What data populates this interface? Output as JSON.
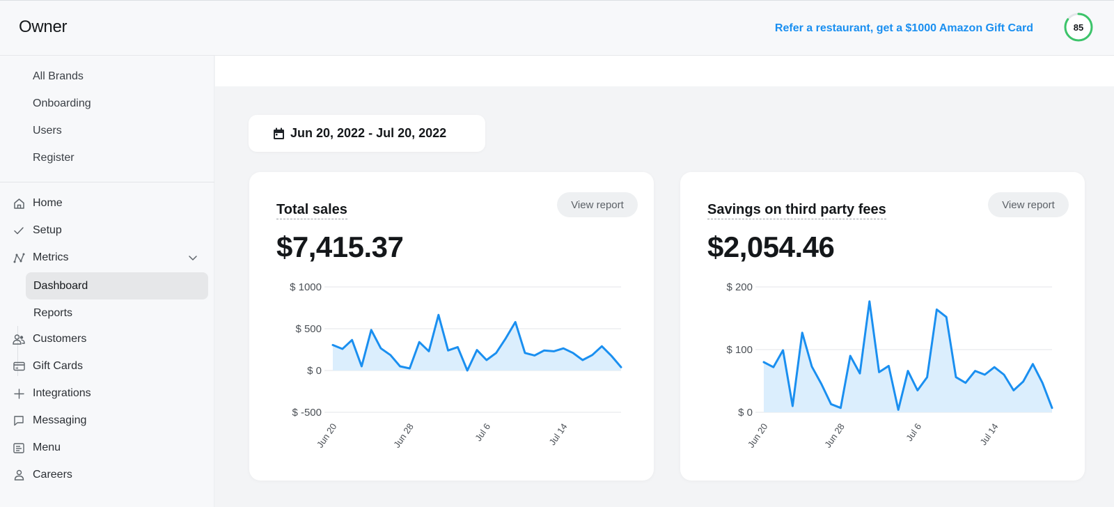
{
  "header": {
    "brand": "Owner",
    "referral": "Refer a restaurant, get a $1000 Amazon Gift Card",
    "score": "85",
    "score_fraction": 0.85,
    "score_color": "#3cc46a"
  },
  "sidebar": {
    "sub_items": [
      {
        "label": "All Brands"
      },
      {
        "label": "Onboarding"
      },
      {
        "label": "Users"
      },
      {
        "label": "Register"
      }
    ],
    "nav": [
      {
        "label": "Home",
        "icon": "home-icon"
      },
      {
        "label": "Setup",
        "icon": "check-icon"
      },
      {
        "label": "Metrics",
        "icon": "metrics-icon"
      },
      {
        "label": "Customers",
        "icon": "customers-icon"
      },
      {
        "label": "Gift Cards",
        "icon": "credit-card-icon"
      },
      {
        "label": "Integrations",
        "icon": "plus-icon"
      },
      {
        "label": "Messaging",
        "icon": "message-icon"
      },
      {
        "label": "Menu",
        "icon": "menu-icon"
      },
      {
        "label": "Careers",
        "icon": "person-icon"
      }
    ],
    "metrics_children": [
      {
        "label": "Dashboard",
        "active": true
      },
      {
        "label": "Reports",
        "active": false
      }
    ]
  },
  "date_range": "Jun 20, 2022 - Jul 20, 2022",
  "cards": [
    {
      "title": "Total sales",
      "value": "$7,415.37",
      "button": "View report"
    },
    {
      "title": "Savings on third party fees",
      "value": "$2,054.46",
      "button": "View report"
    }
  ],
  "chart_data": [
    {
      "type": "area",
      "title": "Total sales",
      "color": "#1a8ff0",
      "fill": "#dbeefd",
      "x": [
        "Jun 20",
        "Jun 21",
        "Jun 22",
        "Jun 23",
        "Jun 24",
        "Jun 25",
        "Jun 26",
        "Jun 27",
        "Jun 28",
        "Jun 29",
        "Jun 30",
        "Jul 1",
        "Jul 2",
        "Jul 3",
        "Jul 4",
        "Jul 5",
        "Jul 6",
        "Jul 7",
        "Jul 8",
        "Jul 9",
        "Jul 10",
        "Jul 11",
        "Jul 12",
        "Jul 13",
        "Jul 14",
        "Jul 15",
        "Jul 16",
        "Jul 17",
        "Jul 18",
        "Jul 19",
        "Jul 20"
      ],
      "values": [
        305,
        258,
        365,
        50,
        485,
        265,
        185,
        50,
        25,
        340,
        230,
        665,
        240,
        280,
        0,
        245,
        125,
        210,
        385,
        580,
        210,
        180,
        240,
        230,
        265,
        210,
        125,
        185,
        290,
        175,
        40
      ],
      "ylim": [
        -500,
        1000
      ],
      "yticks": [
        "$ 1000",
        "$ 500",
        "$ 0",
        "$ -500"
      ],
      "ytick_values": [
        1000,
        500,
        0,
        -500
      ],
      "xticks": [
        "Jun 20",
        "Jun 28",
        "Jul 6",
        "Jul 14"
      ],
      "xtick_index": [
        0,
        8,
        16,
        24
      ]
    },
    {
      "type": "area",
      "title": "Savings on third party fees",
      "color": "#1a8ff0",
      "fill": "#dbeefd",
      "x": [
        "Jun 20",
        "Jun 21",
        "Jun 22",
        "Jun 23",
        "Jun 24",
        "Jun 25",
        "Jun 26",
        "Jun 27",
        "Jun 28",
        "Jun 29",
        "Jun 30",
        "Jul 1",
        "Jul 2",
        "Jul 3",
        "Jul 4",
        "Jul 5",
        "Jul 6",
        "Jul 7",
        "Jul 8",
        "Jul 9",
        "Jul 10",
        "Jul 11",
        "Jul 12",
        "Jul 13",
        "Jul 14",
        "Jul 15",
        "Jul 16",
        "Jul 17",
        "Jul 18",
        "Jul 19",
        "Jul 20"
      ],
      "values": [
        80,
        72,
        99,
        10,
        127,
        73,
        45,
        13,
        7,
        90,
        62,
        177,
        64,
        74,
        4,
        66,
        35,
        56,
        164,
        152,
        56,
        47,
        66,
        60,
        72,
        60,
        35,
        49,
        77,
        47,
        7
      ],
      "ylim": [
        0,
        200
      ],
      "yticks": [
        "$ 200",
        "$ 100",
        "$ 0"
      ],
      "ytick_values": [
        200,
        100,
        0
      ],
      "xticks": [
        "Jun 20",
        "Jun 28",
        "Jul 6",
        "Jul 14"
      ],
      "xtick_index": [
        0,
        8,
        16,
        24
      ]
    }
  ]
}
